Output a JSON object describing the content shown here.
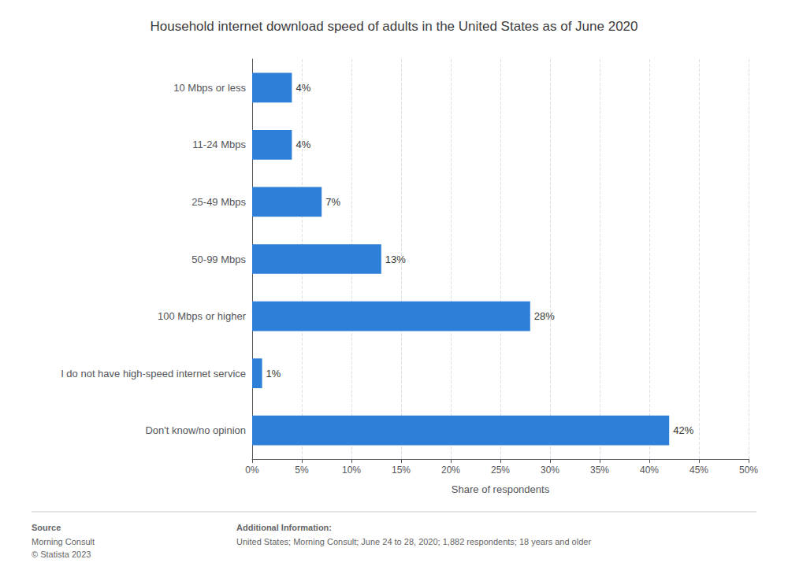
{
  "chart_data": {
    "type": "bar",
    "orientation": "horizontal",
    "title": "Household internet download speed of adults in the United States as of June 2020",
    "categories": [
      "10 Mbps or less",
      "11-24 Mbps",
      "25-49 Mbps",
      "50-99 Mbps",
      "100 Mbps or higher",
      "I do not have high-speed internet service",
      "Don't know/no opinion"
    ],
    "values": [
      4,
      4,
      7,
      13,
      28,
      1,
      42
    ],
    "value_labels": [
      "4%",
      "4%",
      "7%",
      "13%",
      "28%",
      "1%",
      "42%"
    ],
    "data_labels": true,
    "color": "#2e7fd8",
    "xlabel": "Share of respondents",
    "xlim": [
      0,
      50
    ],
    "xticks": [
      {
        "value": 0,
        "label": "0%"
      },
      {
        "value": 5,
        "label": "5%"
      },
      {
        "value": 10,
        "label": "10%"
      },
      {
        "value": 15,
        "label": "15%"
      },
      {
        "value": 20,
        "label": "20%"
      },
      {
        "value": 25,
        "label": "25%"
      },
      {
        "value": 30,
        "label": "30%"
      },
      {
        "value": 35,
        "label": "35%"
      },
      {
        "value": 40,
        "label": "40%"
      },
      {
        "value": 45,
        "label": "45%"
      },
      {
        "value": 50,
        "label": "50%"
      }
    ],
    "grid": true,
    "annotations": [
      "Source",
      "Morning Consult\n© Statista 2023",
      "Additional Information:",
      "United States; Morning Consult; June 24 to 28, 2020; 1,882 respondents; 18 years and older"
    ]
  }
}
